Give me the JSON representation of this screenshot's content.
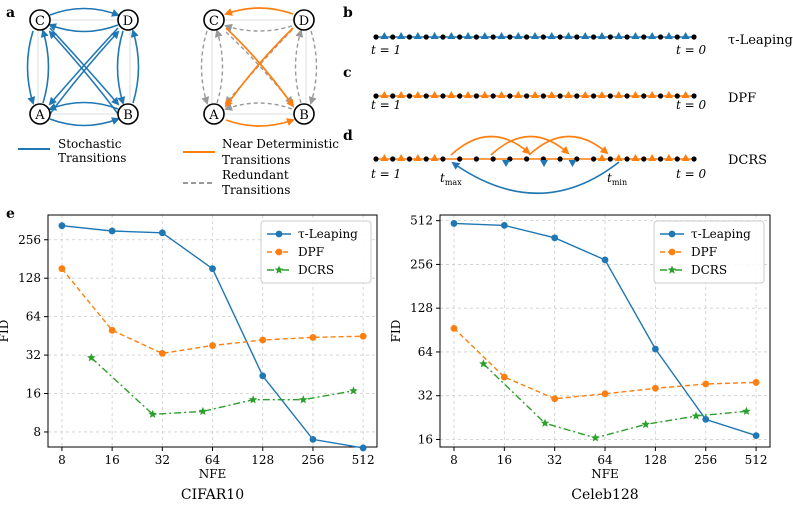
{
  "panels": {
    "a": "a",
    "b": "b",
    "c": "c",
    "d": "d",
    "e": "e"
  },
  "graph": {
    "nodes": [
      "C",
      "D",
      "A",
      "B"
    ],
    "legend": {
      "stochastic": [
        "Stochastic",
        "Transitions"
      ],
      "near_deterministic": [
        "Near Deterministic",
        "Transitions"
      ],
      "redundant": [
        "Redundant",
        "Transitions"
      ]
    }
  },
  "timelines": {
    "t1": "t = 1",
    "t0": "t = 0",
    "tmax": "t",
    "tmax_sub": "max",
    "tmin": "t",
    "tmin_sub": "min",
    "rows": [
      {
        "label": "τ-Leaping",
        "color": "#1f77b4"
      },
      {
        "label": "DPF",
        "color": "#ff7f0e"
      },
      {
        "label": "DCRS",
        "color": "#ff7f0e"
      }
    ]
  },
  "colors": {
    "tau": "#1f77b4",
    "dpf": "#ff7f0e",
    "dcrs": "#2ca02c",
    "redundant": "#999999"
  },
  "chart_data": [
    {
      "type": "line",
      "title": "CIFAR10",
      "xlabel": "NFE",
      "ylabel": "FID",
      "x_scale": "log2",
      "y_scale": "log2",
      "xticks": [
        8,
        16,
        32,
        64,
        128,
        256,
        512
      ],
      "yticks": [
        8,
        16,
        32,
        64,
        128,
        256
      ],
      "xlim": [
        6.6,
        620
      ],
      "ylim": [
        6.1,
        400
      ],
      "grid": true,
      "legend_position": "top-right",
      "series": [
        {
          "name": "τ-Leaping",
          "key": "tau",
          "marker": "circle",
          "linestyle": "solid",
          "x": [
            8,
            16,
            32,
            64,
            128,
            256,
            512
          ],
          "y": [
            330,
            300,
            290,
            152,
            22,
            7,
            6
          ]
        },
        {
          "name": "DPF",
          "key": "dpf",
          "marker": "circle",
          "linestyle": "dashed",
          "x": [
            8,
            16,
            32,
            64,
            128,
            256,
            512
          ],
          "y": [
            152,
            50,
            33,
            38,
            42,
            44,
            45
          ]
        },
        {
          "name": "DCRS",
          "key": "dcrs",
          "marker": "star",
          "linestyle": "dashdot",
          "x": [
            12,
            28,
            56,
            112,
            224,
            448
          ],
          "y": [
            30.5,
            11,
            11.6,
            14.3,
            14.3,
            16.8
          ]
        }
      ]
    },
    {
      "type": "line",
      "title": "Celeb128",
      "xlabel": "NFE",
      "ylabel": "FID",
      "x_scale": "log2",
      "y_scale": "log2",
      "xticks": [
        8,
        16,
        32,
        64,
        128,
        256,
        512
      ],
      "yticks": [
        16,
        32,
        64,
        128,
        256,
        512
      ],
      "xlim": [
        6.6,
        620
      ],
      "ylim": [
        14.2,
        560
      ],
      "grid": true,
      "legend_position": "top-right",
      "series": [
        {
          "name": "τ-Leaping",
          "key": "tau",
          "marker": "circle",
          "linestyle": "solid",
          "x": [
            8,
            16,
            32,
            64,
            128,
            256,
            512
          ],
          "y": [
            490,
            475,
            390,
            275,
            67,
            22,
            17
          ]
        },
        {
          "name": "DPF",
          "key": "dpf",
          "marker": "circle",
          "linestyle": "dashed",
          "x": [
            8,
            16,
            32,
            64,
            128,
            256,
            512
          ],
          "y": [
            93,
            43,
            30.5,
            33,
            36,
            38.5,
            39.5
          ]
        },
        {
          "name": "DCRS",
          "key": "dcrs",
          "marker": "star",
          "linestyle": "dashdot",
          "x": [
            12,
            28,
            56,
            112,
            224,
            448
          ],
          "y": [
            53,
            20.7,
            16.4,
            20.3,
            23.2,
            25
          ]
        }
      ]
    }
  ]
}
